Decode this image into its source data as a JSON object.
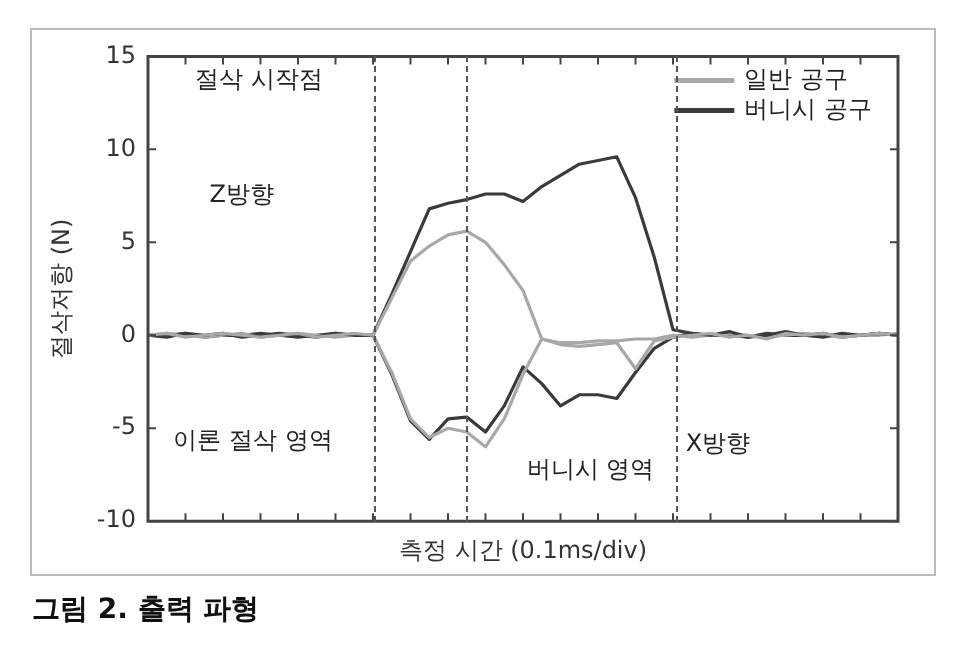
{
  "chart_data": {
    "type": "line",
    "title": "그림 2. 출력 파형",
    "xlabel": "측정 시간 (0.1ms/div)",
    "ylabel": "절삭저항 (N)",
    "categories": [
      null,
      null,
      null,
      null,
      null,
      null,
      null,
      null,
      null,
      null,
      null,
      null,
      null,
      null,
      null,
      null,
      null,
      null,
      null,
      null,
      null,
      null,
      null,
      null,
      null,
      null,
      null,
      null,
      null,
      null,
      null,
      null,
      null,
      null,
      null,
      null,
      null,
      null,
      null,
      null,
      null
    ],
    "ylim": [
      -10,
      15
    ],
    "yticks": [
      -10,
      -5,
      0,
      5,
      10,
      15
    ],
    "tick_labels": "y",
    "grid": false,
    "legend": "top right",
    "marker": "none",
    "line_style": "solid",
    "series": [
      {
        "name": "일반 공구",
        "color": "#a8a8a8",
        "values": [
          0,
          0.1,
          -0.1,
          0,
          0.1,
          0,
          -0.1,
          0,
          0.1,
          -0.1,
          0,
          0.1,
          0,
          2.0,
          4.0,
          4.8,
          5.4,
          5.6,
          5.0,
          3.8,
          2.4,
          -0.2,
          -0.5,
          -0.6,
          -0.5,
          -0.4,
          -1.8,
          -0.3,
          -0.1,
          0,
          0.1,
          -0.1,
          0,
          -0.2,
          0.1,
          0,
          0.1,
          -0.1,
          0,
          0.1,
          0
        ]
      },
      {
        "name": "버니시 공구",
        "color": "#3a3a3a",
        "values": [
          0,
          -0.1,
          0.1,
          0,
          0.1,
          -0.1,
          0,
          0.1,
          0,
          -0.1,
          0.1,
          0,
          0,
          2.2,
          4.5,
          6.8,
          7.1,
          7.3,
          7.6,
          7.6,
          7.2,
          8.0,
          8.6,
          9.2,
          9.4,
          9.6,
          7.4,
          4.2,
          0.3,
          0.1,
          0,
          0.2,
          -0.1,
          0,
          0.2,
          0,
          -0.1,
          0.1,
          0,
          0.1,
          0
        ]
      },
      {
        "color": "#a8a8a8",
        "values": [
          0,
          0.1,
          0,
          -0.1,
          0,
          0.1,
          -0.1,
          0,
          0.1,
          0,
          -0.1,
          0,
          0,
          -2.0,
          -4.5,
          -5.5,
          -5.0,
          -5.2,
          -6.0,
          -4.5,
          -2.1,
          -0.2,
          -0.4,
          -0.4,
          -0.3,
          -0.3,
          -0.2,
          -0.2,
          0,
          -0.1,
          0,
          0.1,
          0,
          -0.1,
          0,
          0.1,
          0,
          -0.1,
          0,
          0,
          0.1
        ]
      },
      {
        "color": "#3a3a3a",
        "values": [
          0,
          0,
          0.1,
          -0.1,
          0,
          0,
          0.1,
          0,
          -0.1,
          0,
          0.1,
          0,
          0,
          -2.1,
          -4.6,
          -5.6,
          -4.5,
          -4.4,
          -5.2,
          -3.8,
          -1.7,
          -2.6,
          -3.8,
          -3.2,
          -3.2,
          -3.4,
          -2.0,
          -0.7,
          -0.1,
          0.1,
          0,
          0,
          -0.1,
          0.1,
          0,
          0,
          0.1,
          -0.1,
          0,
          0.1,
          0
        ]
      }
    ],
    "annotations": [
      "절삭 시작점",
      "Z방향",
      "이론 절삭 영역",
      "버니시 영역",
      "X방향"
    ]
  }
}
